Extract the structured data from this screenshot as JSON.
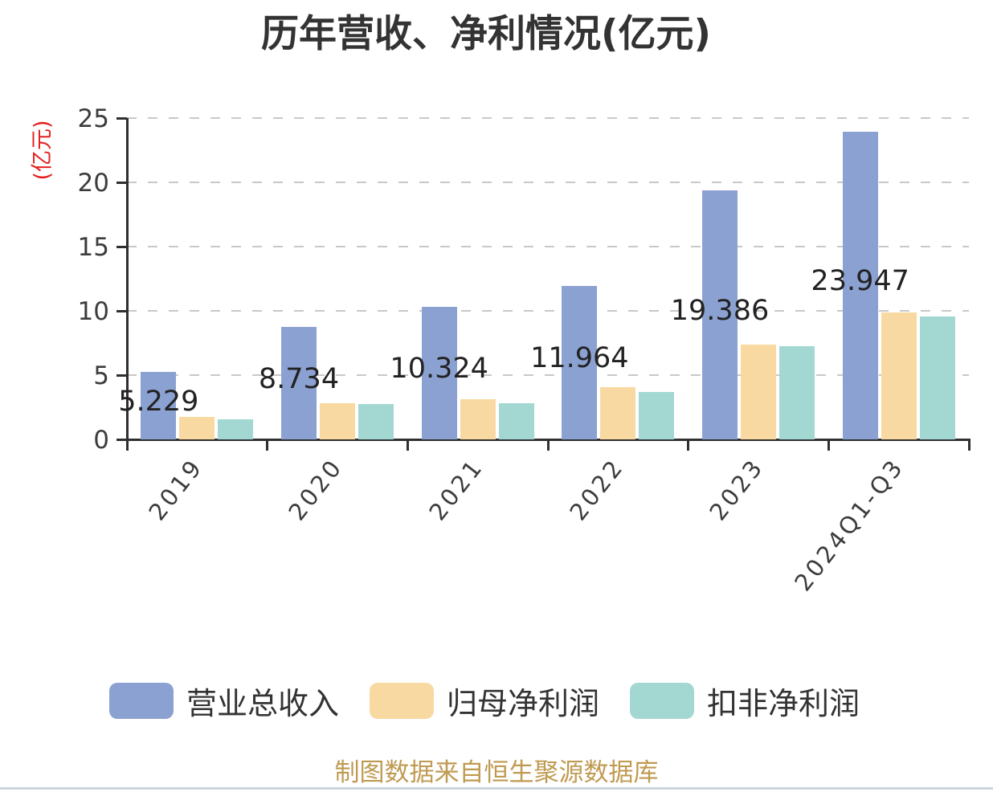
{
  "title": "历年营收、净利情况(亿元)",
  "footer": "制图数据来自恒生聚源数据库",
  "chart_data": {
    "type": "bar",
    "title": "历年营收、净利情况(亿元)",
    "categories": [
      "2019",
      "2020",
      "2021",
      "2022",
      "2023",
      "2024Q1-Q3"
    ],
    "series": [
      {
        "name": "营业总收入",
        "color": "#8BA1D1",
        "values": [
          5.229,
          8.734,
          10.324,
          11.964,
          19.386,
          23.947
        ]
      },
      {
        "name": "归母净利润",
        "color": "#F8D9A2",
        "values": [
          1.75,
          2.81,
          3.13,
          4.06,
          7.38,
          9.9
        ]
      },
      {
        "name": "扣非净利润",
        "color": "#A3D8D2",
        "values": [
          1.56,
          2.72,
          2.81,
          3.71,
          7.25,
          9.54
        ]
      }
    ],
    "bar_labels": [
      "5.229",
      "8.734",
      "10.324",
      "11.964",
      "19.386",
      "23.947"
    ],
    "labeled_series": "营业总收入",
    "xlabel": "",
    "ylabel": "(亿元)",
    "ylim": [
      0,
      25
    ],
    "yticks": [
      0,
      5,
      10,
      15,
      20,
      25
    ],
    "grid": "horizontal-dashed",
    "legend_position": "bottom"
  },
  "colors": {
    "axis": "#2f2f2f",
    "grid": "#c8c8c8",
    "text": "#3c3c3c",
    "ylabel_red": "#e62020",
    "footer_gold": "#bf9a51",
    "divider": "#cdd6df"
  }
}
